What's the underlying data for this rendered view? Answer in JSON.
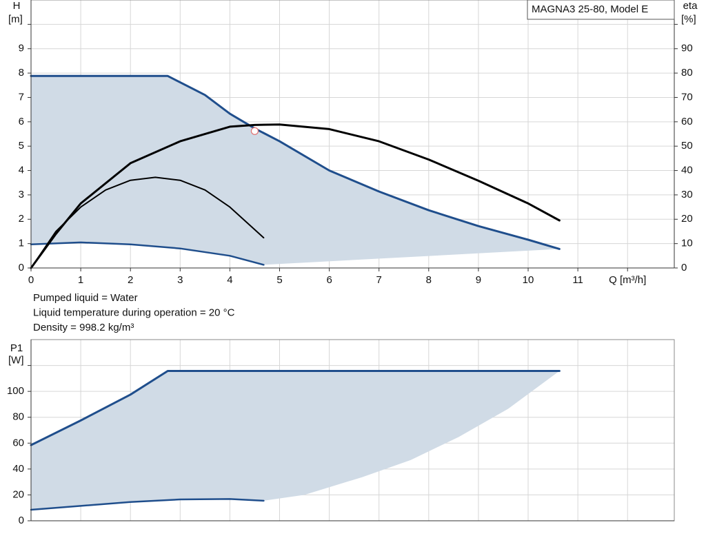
{
  "chart_data": [
    {
      "type": "line",
      "title": "MAGNA3 25-80, Model E",
      "y_label": "H",
      "y2_label": "eta",
      "xlim": [
        0,
        12.94
      ],
      "xticks": [
        0,
        1,
        2,
        3,
        4,
        5,
        6,
        7,
        8,
        9,
        10,
        11,
        {
          "value": 12,
          "label": "Q [m³/h]"
        }
      ],
      "ylim": [
        0,
        11
      ],
      "yticks": [
        0,
        1,
        2,
        3,
        4,
        5,
        6,
        7,
        8,
        9,
        {
          "value": 10,
          "label": "[m]"
        }
      ],
      "y2lim": [
        0,
        110
      ],
      "y2ticks": [
        0,
        10,
        20,
        30,
        40,
        50,
        60,
        70,
        80,
        90,
        {
          "value": 100,
          "label": "[%]"
        }
      ],
      "grid": true,
      "series": [
        {
          "color": "#1f4e8c",
          "width": 3,
          "x": [
            0,
            2.75,
            3.5,
            4,
            4.5,
            5,
            6,
            7,
            8,
            9,
            10,
            10.63
          ],
          "values": [
            7.88,
            7.88,
            7.1,
            6.33,
            5.73,
            5.2,
            4.0,
            3.14,
            2.37,
            1.72,
            1.16,
            0.78
          ]
        },
        {
          "color": "#1f4e8c",
          "width": 2.5,
          "x": [
            0,
            1,
            2,
            3,
            4,
            4.68
          ],
          "values": [
            0.97,
            1.05,
            0.97,
            0.8,
            0.5,
            0.13
          ]
        },
        {
          "color": "#000000",
          "width": 3,
          "axis": "y2",
          "x": [
            0,
            0.5,
            1,
            2,
            3,
            4,
            4.5,
            5,
            6,
            7,
            8,
            9,
            10,
            10.63
          ],
          "values": [
            0,
            14,
            26.5,
            43,
            52,
            58,
            58.7,
            58.9,
            57,
            52,
            44.5,
            35.8,
            26.5,
            19.5
          ]
        },
        {
          "color": "#000000",
          "width": 2,
          "axis": "y2",
          "x": [
            0,
            0.5,
            1,
            1.5,
            2,
            2.5,
            3,
            3.5,
            4,
            4.68
          ],
          "values": [
            0,
            15,
            25,
            32,
            36,
            37.2,
            36,
            32,
            25,
            12.4
          ]
        }
      ],
      "area_color": "#d0dbe6",
      "area_lower": {
        "x": [
          4.68,
          10.63
        ],
        "values": [
          0.13,
          0.78
        ]
      },
      "operating_point": {
        "x": 4.5,
        "y": 5.62,
        "color": "#e07070"
      },
      "notes": [
        "Pumped liquid = Water",
        "Liquid temperature during operation = 20 °C",
        "Density = 998.2 kg/m³"
      ]
    },
    {
      "type": "line",
      "y_label": "P1",
      "xlim": [
        0,
        12.94
      ],
      "xticks": [
        0,
        1,
        2,
        3,
        4,
        5,
        6,
        7,
        8,
        9,
        10,
        11,
        12
      ],
      "xtick_labels": false,
      "ylim": [
        0,
        140
      ],
      "yticks": [
        0,
        20,
        40,
        60,
        80,
        100,
        {
          "value": 120,
          "label": "[W]"
        }
      ],
      "grid": true,
      "series": [
        {
          "color": "#1f4e8c",
          "width": 3,
          "x": [
            0,
            1,
            2,
            2.75,
            10.63
          ],
          "values": [
            58.5,
            77.5,
            97.5,
            115.8,
            115.8
          ]
        },
        {
          "color": "#1f4e8c",
          "width": 2.5,
          "x": [
            0,
            1,
            2,
            3,
            4,
            4.68
          ],
          "values": [
            8.5,
            11.5,
            14.5,
            16.5,
            16.8,
            15.5
          ]
        }
      ],
      "area_color": "#d0dbe6",
      "area_lower": {
        "x": [
          4.68,
          5.5,
          6.66,
          7.64,
          8.6,
          9.6,
          10.63
        ],
        "values": [
          15.5,
          20,
          33.7,
          47,
          64.7,
          86.6,
          115.8
        ]
      }
    }
  ]
}
